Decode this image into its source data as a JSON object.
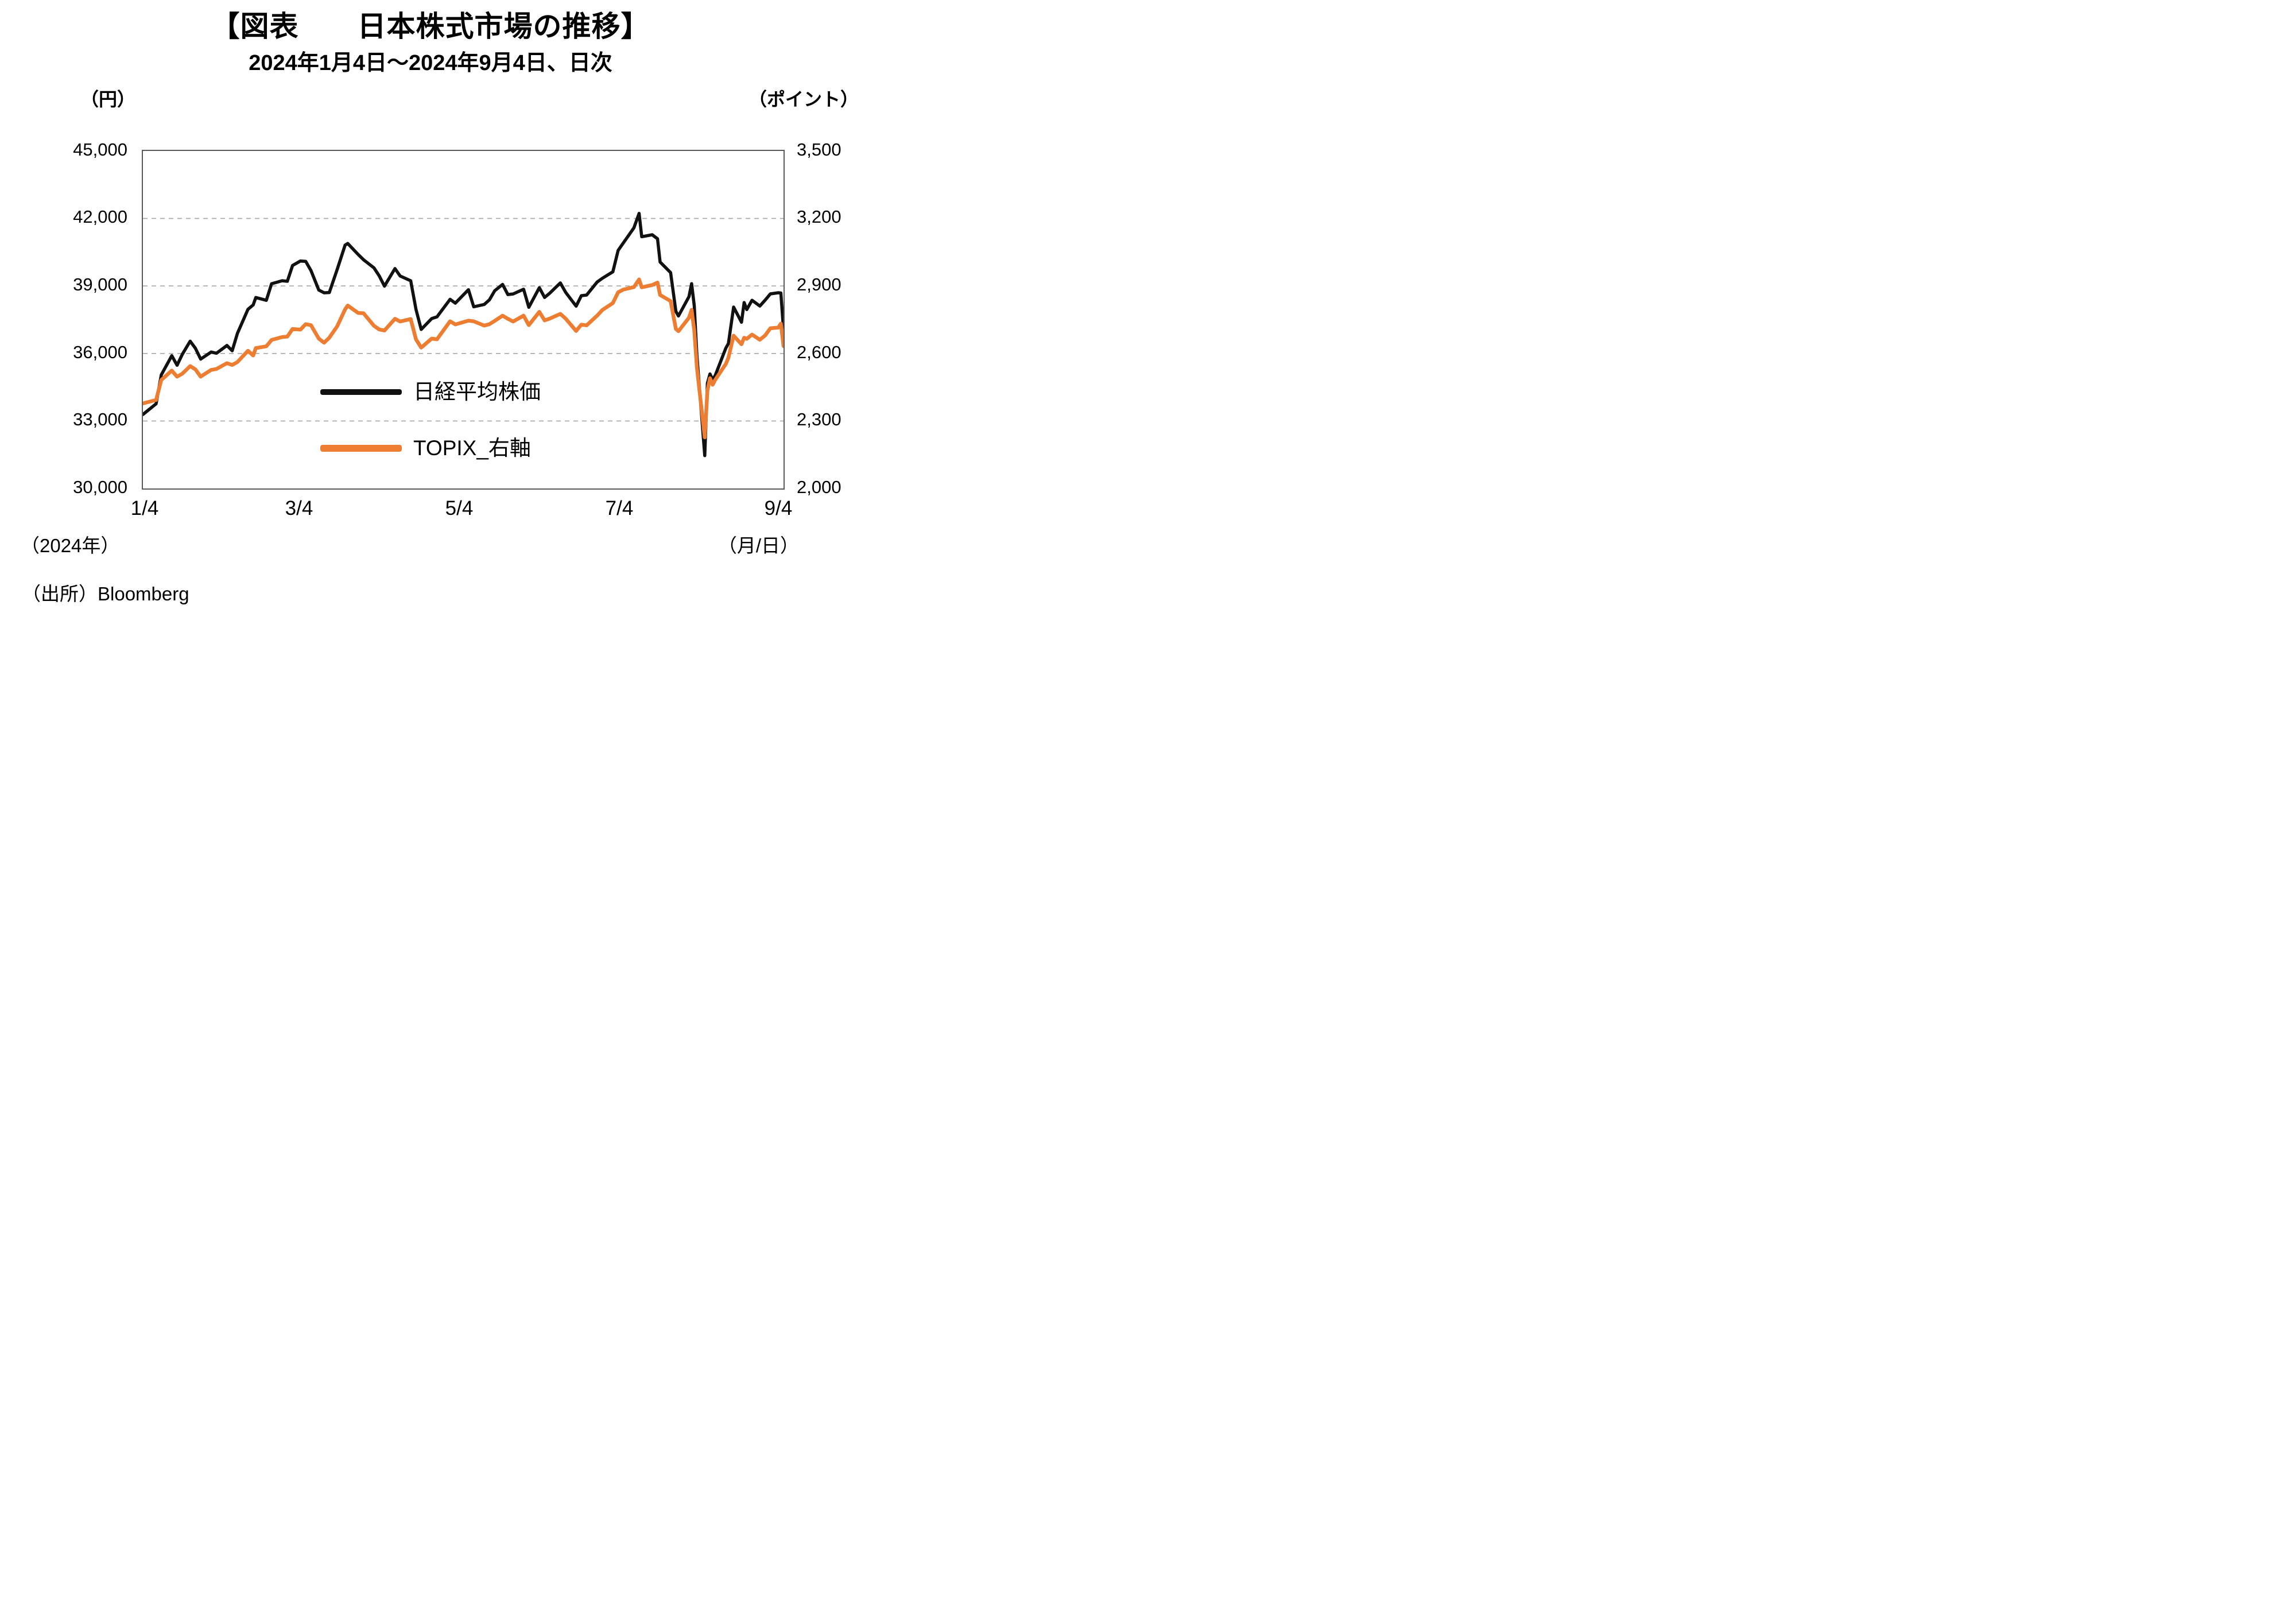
{
  "header": {
    "title": "【図表　　日本株式市場の推移】",
    "subtitle": "2024年1月4日～2024年9月4日、日次"
  },
  "axes": {
    "left_unit": "（円）",
    "right_unit": "（ポイント）",
    "left_ticks": [
      "45,000",
      "42,000",
      "39,000",
      "36,000",
      "33,000",
      "30,000"
    ],
    "right_ticks": [
      "3,500",
      "3,200",
      "2,900",
      "2,600",
      "2,300",
      "2,000"
    ],
    "x_ticks": [
      "1/4",
      "3/4",
      "5/4",
      "7/4",
      "9/4"
    ]
  },
  "legend": [
    {
      "label": "日経平均株価",
      "color": "#111111"
    },
    {
      "label": "TOPIX_右軸",
      "color": "#ED7D31"
    }
  ],
  "footer": {
    "year_note": "（2024年）",
    "xaxis_unit": "（月/日）",
    "source": "（出所）Bloomberg"
  },
  "chart_data": {
    "type": "line",
    "title": "日本株式市場の推移",
    "subtitle": "2024年1月4日～2024年9月4日、日次",
    "x_unit": "月/日 (2024年)",
    "x_range": [
      0,
      244
    ],
    "x_tick_days": [
      0,
      60,
      121,
      182,
      244
    ],
    "x_tick_labels": [
      "1/4",
      "3/4",
      "5/4",
      "7/4",
      "9/4"
    ],
    "left_axis": {
      "label": "円",
      "range": [
        30000,
        45000
      ],
      "ticks": [
        30000,
        33000,
        36000,
        39000,
        42000,
        45000
      ]
    },
    "right_axis": {
      "label": "ポイント",
      "range": [
        2000,
        3500
      ],
      "ticks": [
        2000,
        2300,
        2600,
        2900,
        3200,
        3500
      ]
    },
    "grid": "dashed-horizontal",
    "legend_position": "inside-lower-center",
    "x_days": [
      0,
      5,
      7,
      11,
      13,
      15,
      18,
      20,
      22,
      26,
      28,
      32,
      34,
      36,
      40,
      42,
      43,
      47,
      49,
      53,
      55,
      57,
      60,
      62,
      64,
      67,
      69,
      71,
      74,
      77,
      78,
      82,
      84,
      88,
      90,
      92,
      96,
      98,
      102,
      104,
      106,
      110,
      112,
      117,
      119,
      124,
      126,
      130,
      132,
      134,
      137,
      139,
      141,
      145,
      147,
      151,
      153,
      155,
      159,
      161,
      165,
      167,
      169,
      173,
      175,
      179,
      181,
      183,
      187,
      189,
      190,
      194,
      196,
      197,
      201,
      203,
      204,
      208,
      209,
      210,
      211,
      214,
      215,
      216,
      217,
      218,
      222,
      223,
      225,
      228,
      229,
      230,
      232,
      235,
      237,
      239,
      242,
      243,
      244
    ],
    "series": [
      {
        "name": "日経平均株価",
        "axis": "left",
        "color": "#111111",
        "values": [
          33288,
          33763,
          35049,
          35901,
          35477,
          35963,
          36546,
          36226,
          35751,
          36065,
          36011,
          36354,
          36119,
          36897,
          37963,
          38157,
          38487,
          38363,
          39098,
          39233,
          39208,
          39910,
          40109,
          40091,
          39688,
          38820,
          38696,
          38708,
          39740,
          40815,
          40888,
          40398,
          40168,
          39803,
          39451,
          38992,
          39773,
          39442,
          39232,
          37961,
          37068,
          37552,
          37628,
          38405,
          38236,
          38835,
          38074,
          38179,
          38385,
          38787,
          39069,
          38617,
          38646,
          38855,
          38054,
          38923,
          38490,
          38683,
          39134,
          38720,
          38102,
          38570,
          38596,
          39173,
          39341,
          39631,
          40581,
          40912,
          41580,
          42224,
          41190,
          41275,
          41097,
          40063,
          39594,
          37869,
          37667,
          38525,
          39101,
          38126,
          35909,
          31458,
          34675,
          35089,
          34831,
          35025,
          36232,
          36442,
          38062,
          37388,
          38263,
          37951,
          38364,
          38110,
          38371,
          38647,
          38700,
          38686,
          37047
        ]
      },
      {
        "name": "TOPIX_右軸",
        "axis": "right",
        "color": "#ED7D31",
        "values": [
          2378,
          2393,
          2482,
          2524,
          2497,
          2510,
          2544,
          2529,
          2497,
          2527,
          2531,
          2557,
          2549,
          2562,
          2612,
          2591,
          2624,
          2632,
          2660,
          2673,
          2675,
          2709,
          2706,
          2730,
          2726,
          2666,
          2648,
          2670,
          2721,
          2796,
          2813,
          2780,
          2779,
          2723,
          2707,
          2702,
          2754,
          2742,
          2753,
          2663,
          2626,
          2666,
          2663,
          2743,
          2729,
          2746,
          2743,
          2724,
          2730,
          2745,
          2768,
          2754,
          2742,
          2768,
          2726,
          2785,
          2747,
          2755,
          2776,
          2755,
          2700,
          2728,
          2725,
          2768,
          2793,
          2824,
          2872,
          2884,
          2895,
          2929,
          2894,
          2904,
          2915,
          2860,
          2833,
          2709,
          2699,
          2759,
          2794,
          2703,
          2537,
          2227,
          2434,
          2490,
          2461,
          2483,
          2553,
          2581,
          2679,
          2641,
          2670,
          2665,
          2684,
          2661,
          2680,
          2712,
          2715,
          2733,
          2633
        ]
      }
    ]
  }
}
